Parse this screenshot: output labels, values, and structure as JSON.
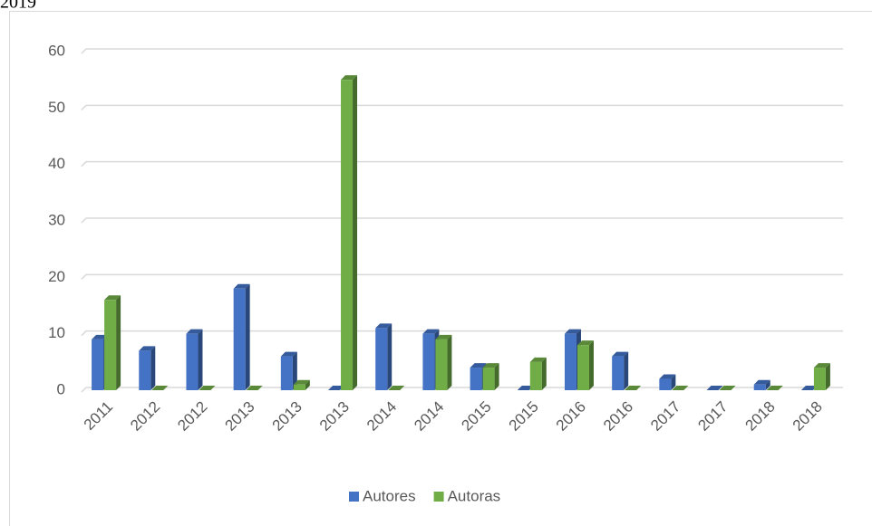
{
  "caption": "2019",
  "chart_data": {
    "type": "bar",
    "categories": [
      "2011",
      "2012",
      "2012",
      "2013",
      "2013",
      "2013",
      "2014",
      "2014",
      "2015",
      "2015",
      "2016",
      "2016",
      "2017",
      "2017",
      "2018",
      "2018"
    ],
    "series": [
      {
        "name": "Autores",
        "color": "#4472c4",
        "values": [
          9,
          7,
          10,
          18,
          6,
          0,
          11,
          10,
          4,
          0,
          10,
          6,
          2,
          0,
          1,
          0
        ]
      },
      {
        "name": "Autoras",
        "color": "#70ad47",
        "values": [
          16,
          0,
          0,
          0,
          1,
          55,
          0,
          9,
          4,
          5,
          8,
          0,
          0,
          0,
          0,
          4
        ]
      }
    ],
    "ylim": [
      0,
      60
    ],
    "yticks": [
      0,
      10,
      20,
      30,
      40,
      50,
      60
    ],
    "grid": true,
    "legend": "bottom"
  }
}
